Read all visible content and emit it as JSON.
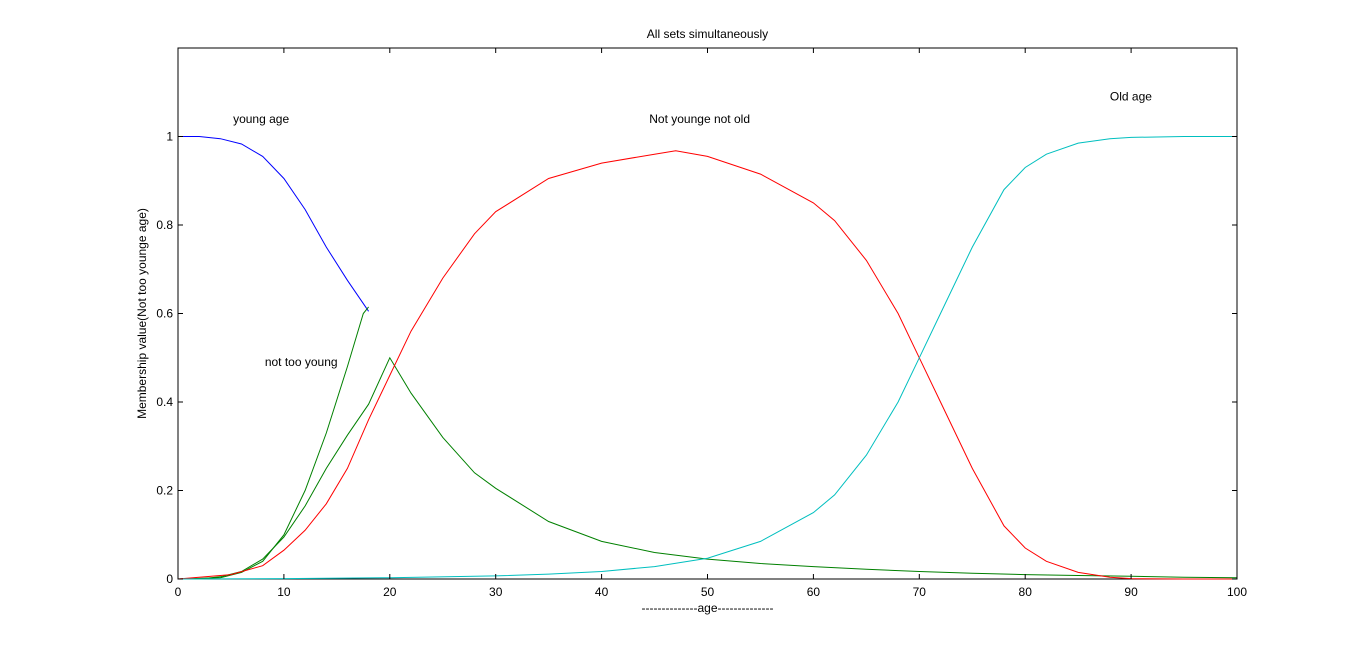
{
  "chart_data": {
    "type": "line",
    "title": "All sets simultaneously",
    "xlabel": "--------------age--------------",
    "ylabel": "Membership value(Not too younge age)",
    "xlim": [
      0,
      100
    ],
    "ylim": [
      0,
      1.2
    ],
    "xticks": [
      0,
      10,
      20,
      30,
      40,
      50,
      60,
      70,
      80,
      90,
      100
    ],
    "yticks": [
      0,
      0.2,
      0.4,
      0.6,
      0.8,
      1
    ],
    "xtick_labels": [
      "0",
      "10",
      "20",
      "30",
      "40",
      "50",
      "60",
      "70",
      "80",
      "90",
      "100"
    ],
    "ytick_labels": [
      "0",
      "0.2",
      "0.4",
      "0.6",
      "0.8",
      "1"
    ],
    "grid": false,
    "series": [
      {
        "color": "#0000ff",
        "x": [
          0,
          2,
          4,
          6,
          8,
          10,
          12,
          14,
          16,
          18
        ],
        "y": [
          1.0,
          1.0,
          0.995,
          0.983,
          0.955,
          0.905,
          0.835,
          0.75,
          0.675,
          0.605
        ]
      },
      {
        "color": "#008000",
        "x": [
          0,
          2,
          4,
          6,
          8,
          10,
          12,
          14,
          16,
          18,
          20,
          22,
          25,
          28,
          30,
          35,
          40,
          45,
          50,
          55,
          60,
          65,
          70,
          75,
          80,
          85,
          90,
          95,
          100
        ],
        "y": [
          0.0,
          0.0,
          0.005,
          0.017,
          0.045,
          0.095,
          0.165,
          0.25,
          0.325,
          0.395,
          0.5,
          0.42,
          0.32,
          0.24,
          0.205,
          0.13,
          0.085,
          0.06,
          0.045,
          0.035,
          0.028,
          0.022,
          0.017,
          0.013,
          0.01,
          0.008,
          0.006,
          0.004,
          0.003
        ]
      },
      {
        "color": "#008000",
        "x": [
          0,
          4,
          6,
          8,
          10,
          12,
          14,
          16,
          17.5,
          18
        ],
        "y": [
          0.0,
          0.003,
          0.015,
          0.04,
          0.1,
          0.2,
          0.33,
          0.48,
          0.6,
          0.615
        ]
      },
      {
        "color": "#ff0000",
        "x": [
          0,
          5,
          8,
          10,
          12,
          14,
          16,
          18,
          20,
          22,
          25,
          28,
          30,
          35,
          40,
          45,
          47,
          50,
          55,
          60,
          62,
          65,
          68,
          70,
          72,
          75,
          78,
          80,
          82,
          85,
          88,
          90,
          95,
          100
        ],
        "y": [
          0.0,
          0.01,
          0.03,
          0.065,
          0.11,
          0.17,
          0.25,
          0.36,
          0.46,
          0.56,
          0.68,
          0.78,
          0.83,
          0.905,
          0.94,
          0.96,
          0.968,
          0.955,
          0.915,
          0.85,
          0.81,
          0.72,
          0.6,
          0.5,
          0.4,
          0.25,
          0.12,
          0.07,
          0.04,
          0.015,
          0.004,
          0.001,
          0.0,
          0.0
        ]
      },
      {
        "color": "#00bfbf",
        "x": [
          0,
          10,
          20,
          30,
          35,
          40,
          45,
          50,
          55,
          60,
          62,
          65,
          68,
          70,
          72,
          75,
          78,
          80,
          82,
          85,
          88,
          90,
          95,
          100
        ],
        "y": [
          0.0,
          0.001,
          0.003,
          0.007,
          0.011,
          0.017,
          0.028,
          0.047,
          0.085,
          0.15,
          0.19,
          0.28,
          0.4,
          0.5,
          0.6,
          0.75,
          0.88,
          0.93,
          0.96,
          0.985,
          0.995,
          0.998,
          1.0,
          1.0
        ]
      }
    ],
    "annotations": [
      {
        "text": "young age",
        "x": 5.2,
        "y": 1.04
      },
      {
        "text": "not too young",
        "x": 8.2,
        "y": 0.49
      },
      {
        "text": "Not younge not old",
        "x": 44.5,
        "y": 1.04
      },
      {
        "text": "Old age",
        "x": 88,
        "y": 1.09
      }
    ]
  }
}
